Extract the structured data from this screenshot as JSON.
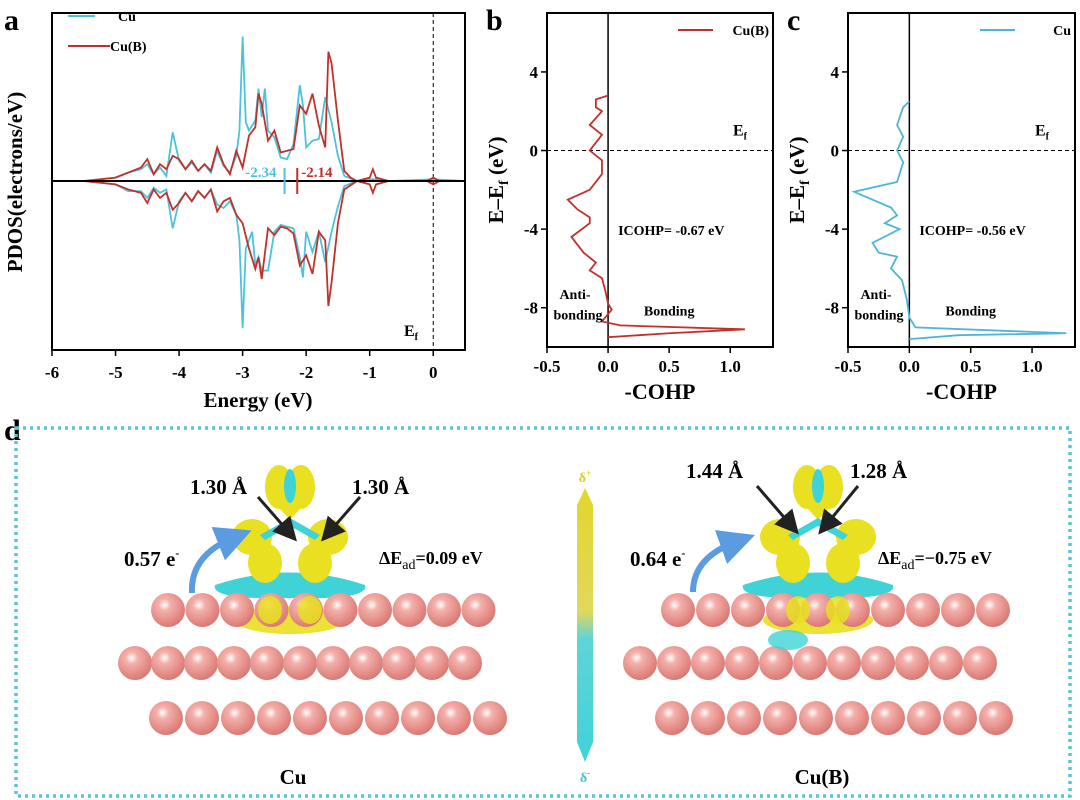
{
  "panel_labels": {
    "a": "a",
    "b": "b",
    "c": "c",
    "d": "d"
  },
  "colors": {
    "cu": "#4cc3d9",
    "cub": "#c0312b",
    "isosurface_positive": "#e8e020",
    "isosurface_negative": "#3fd3d8",
    "atom": "#e98a84",
    "frame": "#5cc3d0",
    "arrow": "#5b9be0"
  },
  "chart_data": [
    {
      "type": "line",
      "panel": "a",
      "xlabel": "Energy (eV)",
      "ylabel": "PDOS(electrons/eV)",
      "xlim": [
        -6,
        0.5
      ],
      "ylim": [
        -1,
        1
      ],
      "xticks": [
        "-6",
        "-5",
        "-4",
        "-3",
        "-2",
        "-1",
        "0"
      ],
      "xtick_values": [
        -6,
        -5,
        -4,
        -3,
        -2,
        -1,
        0
      ],
      "fermi_label": "E",
      "fermi_sub": "f",
      "legend": "top-left",
      "series": [
        {
          "name": "Cu",
          "color": "#4cc3d9",
          "up": [
            [
              -6,
              0
            ],
            [
              -5.5,
              0
            ],
            [
              -5,
              0.02
            ],
            [
              -4.8,
              0.05
            ],
            [
              -4.6,
              0.07
            ],
            [
              -4.5,
              0.1
            ],
            [
              -4.4,
              0.04
            ],
            [
              -4.3,
              0.08
            ],
            [
              -4.2,
              0.03
            ],
            [
              -4.1,
              0.29
            ],
            [
              -4.0,
              0.12
            ],
            [
              -3.9,
              0.07
            ],
            [
              -3.8,
              0.11
            ],
            [
              -3.7,
              0.06
            ],
            [
              -3.6,
              0.1
            ],
            [
              -3.5,
              0.05
            ],
            [
              -3.4,
              0.18
            ],
            [
              -3.3,
              0.09
            ],
            [
              -3.2,
              0.05
            ],
            [
              -3.1,
              0.15
            ],
            [
              -3.05,
              0.3
            ],
            [
              -3.0,
              0.86
            ],
            [
              -2.95,
              0.35
            ],
            [
              -2.9,
              0.3
            ],
            [
              -2.8,
              0.36
            ],
            [
              -2.75,
              0.55
            ],
            [
              -2.7,
              0.38
            ],
            [
              -2.65,
              0.55
            ],
            [
              -2.6,
              0.3
            ],
            [
              -2.5,
              0.26
            ],
            [
              -2.4,
              0.14
            ],
            [
              -2.3,
              0.13
            ],
            [
              -2.2,
              0.22
            ],
            [
              -2.1,
              0.57
            ],
            [
              -2.05,
              0.45
            ],
            [
              -2.0,
              0.2
            ],
            [
              -1.9,
              0.24
            ],
            [
              -1.8,
              0.25
            ],
            [
              -1.7,
              0.5
            ],
            [
              -1.6,
              0.35
            ],
            [
              -1.5,
              0.15
            ],
            [
              -1.4,
              0.03
            ],
            [
              -1.2,
              0
            ],
            [
              -1.0,
              0.01
            ],
            [
              -0.9,
              0.01
            ],
            [
              -0.7,
              0
            ],
            [
              0,
              0.01
            ],
            [
              0.5,
              0
            ]
          ],
          "down": [
            [
              -6,
              0
            ],
            [
              -5.5,
              0
            ],
            [
              -5,
              -0.02
            ],
            [
              -4.8,
              -0.06
            ],
            [
              -4.6,
              -0.06
            ],
            [
              -4.5,
              -0.1
            ],
            [
              -4.4,
              -0.04
            ],
            [
              -4.3,
              -0.07
            ],
            [
              -4.2,
              -0.05
            ],
            [
              -4.1,
              -0.28
            ],
            [
              -4.0,
              -0.12
            ],
            [
              -3.9,
              -0.07
            ],
            [
              -3.8,
              -0.12
            ],
            [
              -3.7,
              -0.06
            ],
            [
              -3.6,
              -0.1
            ],
            [
              -3.5,
              -0.05
            ],
            [
              -3.4,
              -0.14
            ],
            [
              -3.3,
              -0.16
            ],
            [
              -3.2,
              -0.12
            ],
            [
              -3.1,
              -0.2
            ],
            [
              -3.05,
              -0.35
            ],
            [
              -3.0,
              -0.87
            ],
            [
              -2.95,
              -0.4
            ],
            [
              -2.85,
              -0.3
            ],
            [
              -2.8,
              -0.5
            ],
            [
              -2.75,
              -0.45
            ],
            [
              -2.7,
              -0.53
            ],
            [
              -2.6,
              -0.53
            ],
            [
              -2.5,
              -0.3
            ],
            [
              -2.4,
              -0.26
            ],
            [
              -2.3,
              -0.27
            ],
            [
              -2.2,
              -0.28
            ],
            [
              -2.1,
              -0.45
            ],
            [
              -2.05,
              -0.57
            ],
            [
              -2.0,
              -0.3
            ],
            [
              -1.9,
              -0.42
            ],
            [
              -1.8,
              -0.3
            ],
            [
              -1.7,
              -0.48
            ],
            [
              -1.6,
              -0.3
            ],
            [
              -1.5,
              -0.15
            ],
            [
              -1.4,
              -0.03
            ],
            [
              -1.2,
              0
            ],
            [
              0.5,
              0
            ]
          ]
        },
        {
          "name": "Cu(B)",
          "color": "#c0312b",
          "up": [
            [
              -6,
              0
            ],
            [
              -5.5,
              0
            ],
            [
              -5,
              0.02
            ],
            [
              -4.8,
              0.05
            ],
            [
              -4.6,
              0.08
            ],
            [
              -4.5,
              0.13
            ],
            [
              -4.4,
              0.04
            ],
            [
              -4.3,
              0.1
            ],
            [
              -4.2,
              0.07
            ],
            [
              -4.1,
              0.15
            ],
            [
              -4.0,
              0.13
            ],
            [
              -3.9,
              0.07
            ],
            [
              -3.8,
              0.12
            ],
            [
              -3.7,
              0.06
            ],
            [
              -3.6,
              0.1
            ],
            [
              -3.5,
              0.06
            ],
            [
              -3.4,
              0.2
            ],
            [
              -3.3,
              0.1
            ],
            [
              -3.2,
              0.04
            ],
            [
              -3.1,
              0.18
            ],
            [
              -3.0,
              0.08
            ],
            [
              -2.9,
              0.27
            ],
            [
              -2.8,
              0.32
            ],
            [
              -2.75,
              0.52
            ],
            [
              -2.7,
              0.46
            ],
            [
              -2.6,
              0.24
            ],
            [
              -2.5,
              0.3
            ],
            [
              -2.4,
              0.17
            ],
            [
              -2.3,
              0.18
            ],
            [
              -2.2,
              0.19
            ],
            [
              -2.1,
              0.45
            ],
            [
              -2.0,
              0.4
            ],
            [
              -1.9,
              0.52
            ],
            [
              -1.8,
              0.33
            ],
            [
              -1.7,
              0.2
            ],
            [
              -1.65,
              0.77
            ],
            [
              -1.6,
              0.7
            ],
            [
              -1.5,
              0.36
            ],
            [
              -1.4,
              0.06
            ],
            [
              -1.3,
              0.02
            ],
            [
              -1.2,
              0
            ],
            [
              -1.0,
              0.02
            ],
            [
              -0.95,
              0.07
            ],
            [
              -0.9,
              0.02
            ],
            [
              -0.7,
              0
            ],
            [
              -0.1,
              0
            ],
            [
              0,
              0.02
            ],
            [
              0.1,
              0
            ],
            [
              0.5,
              0
            ]
          ],
          "down": [
            [
              -6,
              0
            ],
            [
              -5.5,
              0
            ],
            [
              -5,
              -0.02
            ],
            [
              -4.8,
              -0.05
            ],
            [
              -4.6,
              -0.07
            ],
            [
              -4.5,
              -0.13
            ],
            [
              -4.4,
              -0.05
            ],
            [
              -4.3,
              -0.1
            ],
            [
              -4.2,
              -0.07
            ],
            [
              -4.1,
              -0.17
            ],
            [
              -4.0,
              -0.13
            ],
            [
              -3.9,
              -0.07
            ],
            [
              -3.8,
              -0.12
            ],
            [
              -3.7,
              -0.06
            ],
            [
              -3.6,
              -0.1
            ],
            [
              -3.5,
              -0.05
            ],
            [
              -3.4,
              -0.18
            ],
            [
              -3.3,
              -0.12
            ],
            [
              -3.2,
              -0.1
            ],
            [
              -3.1,
              -0.2
            ],
            [
              -3.0,
              -0.25
            ],
            [
              -2.9,
              -0.4
            ],
            [
              -2.8,
              -0.52
            ],
            [
              -2.75,
              -0.45
            ],
            [
              -2.7,
              -0.58
            ],
            [
              -2.6,
              -0.28
            ],
            [
              -2.5,
              -0.32
            ],
            [
              -2.4,
              -0.27
            ],
            [
              -2.3,
              -0.28
            ],
            [
              -2.2,
              -0.31
            ],
            [
              -2.1,
              -0.5
            ],
            [
              -2.0,
              -0.44
            ],
            [
              -1.9,
              -0.55
            ],
            [
              -1.8,
              -0.3
            ],
            [
              -1.7,
              -0.35
            ],
            [
              -1.65,
              -0.74
            ],
            [
              -1.6,
              -0.6
            ],
            [
              -1.5,
              -0.25
            ],
            [
              -1.4,
              -0.05
            ],
            [
              -1.2,
              0
            ],
            [
              -1.0,
              -0.02
            ],
            [
              -0.95,
              -0.07
            ],
            [
              -0.9,
              -0.02
            ],
            [
              -0.7,
              0
            ],
            [
              -0.1,
              0
            ],
            [
              0,
              -0.02
            ],
            [
              0.1,
              0
            ],
            [
              0.5,
              0
            ]
          ]
        }
      ],
      "annotations": [
        {
          "text": "-2.34",
          "x": -2.34,
          "color": "#4cc3d9"
        },
        {
          "text": "-2.14",
          "x": -2.14,
          "color": "#c0312b"
        }
      ]
    },
    {
      "type": "line",
      "panel": "b",
      "xlabel": "-COHP",
      "ylabel": "E–E",
      "ylabel_sub": "f",
      "ylabel_unit": " (eV)",
      "xlim": [
        -0.5,
        1.35
      ],
      "ylim": [
        -10,
        7
      ],
      "xticks": [
        "-0.5",
        "0.0",
        "0.5",
        "1.0"
      ],
      "xtick_values": [
        -0.5,
        0,
        0.5,
        1.0
      ],
      "yticks": [
        "4",
        "0",
        "-4",
        "-8"
      ],
      "ytick_values": [
        4,
        0,
        -4,
        -8
      ],
      "legend": "top-right",
      "fermi_label": "E",
      "fermi_sub": "f",
      "icohp": "ICOHP= -0.67 eV",
      "anti_label_1": "Anti-",
      "anti_label_2": "bonding",
      "bonding_label": "Bonding",
      "series": [
        {
          "name": "Cu(B)",
          "color": "#c0312b",
          "points": [
            [
              0,
              2.8
            ],
            [
              -0.1,
              2.6
            ],
            [
              -0.1,
              2.2
            ],
            [
              -0.05,
              2.0
            ],
            [
              -0.15,
              1.3
            ],
            [
              -0.05,
              0.8
            ],
            [
              -0.15,
              0
            ],
            [
              -0.05,
              -0.5
            ],
            [
              -0.05,
              -1.2
            ],
            [
              -0.15,
              -2.0
            ],
            [
              -0.33,
              -2.5
            ],
            [
              -0.25,
              -3.0
            ],
            [
              -0.15,
              -3.4
            ],
            [
              -0.15,
              -3.7
            ],
            [
              -0.3,
              -4.4
            ],
            [
              -0.2,
              -5.2
            ],
            [
              -0.1,
              -5.7
            ],
            [
              -0.15,
              -6.1
            ],
            [
              -0.05,
              -6.5
            ],
            [
              -0.02,
              -7.2
            ],
            [
              0,
              -7.8
            ],
            [
              0.03,
              -8.1
            ],
            [
              -0.05,
              -8.7
            ],
            [
              0.1,
              -8.9
            ],
            [
              1.12,
              -9.1
            ],
            [
              0.5,
              -9.3
            ],
            [
              0,
              -9.5
            ]
          ]
        }
      ]
    },
    {
      "type": "line",
      "panel": "c",
      "xlabel": "-COHP",
      "ylabel": "E–E",
      "ylabel_sub": "f",
      "ylabel_unit": " (eV)",
      "xlim": [
        -0.5,
        1.35
      ],
      "ylim": [
        -10,
        7
      ],
      "xticks": [
        "-0.5",
        "0.0",
        "0.5",
        "1.0"
      ],
      "xtick_values": [
        -0.5,
        0,
        0.5,
        1.0
      ],
      "yticks": [
        "4",
        "0",
        "-4",
        "-8"
      ],
      "ytick_values": [
        4,
        0,
        -4,
        -8
      ],
      "legend": "top-right",
      "fermi_label": "E",
      "fermi_sub": "f",
      "icohp": "ICOHP= -0.56 eV",
      "anti_label_1": "Anti-",
      "anti_label_2": "bonding",
      "bonding_label": "Bonding",
      "series": [
        {
          "name": "Cu",
          "color": "#4fb5d6",
          "points": [
            [
              0,
              2.5
            ],
            [
              -0.05,
              2.2
            ],
            [
              -0.1,
              1.3
            ],
            [
              -0.05,
              0.7
            ],
            [
              -0.1,
              0
            ],
            [
              -0.05,
              -0.6
            ],
            [
              -0.1,
              -1.6
            ],
            [
              -0.45,
              -2.1
            ],
            [
              -0.15,
              -2.9
            ],
            [
              -0.1,
              -3.3
            ],
            [
              -0.2,
              -3.7
            ],
            [
              -0.08,
              -4.0
            ],
            [
              -0.3,
              -4.7
            ],
            [
              -0.25,
              -5.2
            ],
            [
              -0.1,
              -5.4
            ],
            [
              -0.15,
              -6.0
            ],
            [
              -0.06,
              -6.6
            ],
            [
              -0.02,
              -7.6
            ],
            [
              0,
              -8.5
            ],
            [
              0.05,
              -9.0
            ],
            [
              1.28,
              -9.3
            ],
            [
              0.4,
              -9.4
            ],
            [
              0,
              -9.6
            ]
          ]
        }
      ]
    }
  ],
  "panel_d": {
    "left": {
      "caption": "Cu",
      "bond1": "1.30 Å",
      "bond2": "1.30 Å",
      "charge": "0.57 e",
      "charge_sup": "-",
      "dE_prefix": "ΔE",
      "dE_sub": "ad",
      "dE_value": "=0.09 eV"
    },
    "right": {
      "caption": "Cu(B)",
      "bond1": "1.44 Å",
      "bond2": "1.28 Å",
      "charge": "0.64 e",
      "charge_sup": "-",
      "dE_prefix": "ΔE",
      "dE_sub": "ad",
      "dE_value": "=−0.75 eV"
    },
    "colorbar": {
      "top": "δ",
      "top_sup": "+",
      "bottom": "δ",
      "bottom_sup": "-"
    }
  }
}
